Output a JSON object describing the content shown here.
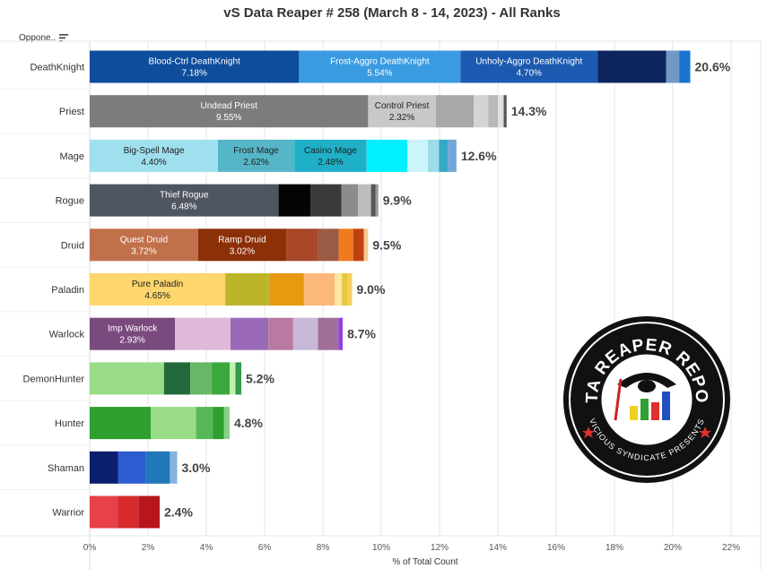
{
  "title": "vS Data Reaper # 258 (March 8 - 14, 2023) - All Ranks",
  "filter_label": "Oppone..",
  "logo_text": {
    "top": "DATA REAPER REPORT",
    "bottom": "VICIOUS SYNDICATE PRESENTS"
  },
  "chart_data": {
    "type": "bar",
    "orientation": "horizontal",
    "stacked": true,
    "xlabel": "% of Total Count",
    "xlim": [
      0,
      23
    ],
    "xticks": [
      "0%",
      "2%",
      "4%",
      "6%",
      "8%",
      "10%",
      "12%",
      "14%",
      "16%",
      "18%",
      "20%",
      "22%"
    ],
    "grid": true,
    "categories": [
      "DeathKnight",
      "Priest",
      "Mage",
      "Rogue",
      "Druid",
      "Paladin",
      "Warlock",
      "DemonHunter",
      "Hunter",
      "Shaman",
      "Warrior"
    ],
    "totals": [
      "20.6%",
      "14.3%",
      "12.6%",
      "9.9%",
      "9.5%",
      "9.0%",
      "8.7%",
      "5.2%",
      "4.8%",
      "3.0%",
      "2.4%"
    ],
    "bars": [
      {
        "class": "DeathKnight",
        "segments": [
          {
            "label": "Blood-Ctrl DeathKnight",
            "value": 7.18,
            "display": "7.18%",
            "color": "#0e4c9c",
            "text_color": "#ffffff"
          },
          {
            "label": "Frost-Aggro DeathKnight",
            "value": 5.54,
            "display": "5.54%",
            "color": "#3a9be0",
            "text_color": "#ffffff"
          },
          {
            "label": "Unholy-Aggro DeathKnight",
            "value": 4.7,
            "display": "4.70%",
            "color": "#1b5ab0",
            "text_color": "#ffffff"
          },
          {
            "value": 2.35,
            "color": "#0d245e"
          },
          {
            "value": 0.45,
            "color": "#6f9ac8"
          },
          {
            "value": 0.38,
            "color": "#1a73d0"
          }
        ]
      },
      {
        "class": "Priest",
        "segments": [
          {
            "label": "Undead Priest",
            "value": 9.55,
            "display": "9.55%",
            "color": "#7c7c7c",
            "text_color": "#ffffff"
          },
          {
            "label": "Control Priest",
            "value": 2.32,
            "display": "2.32%",
            "color": "#c8c8c8",
            "text_color": "#222222"
          },
          {
            "value": 1.3,
            "color": "#a8a8a8"
          },
          {
            "value": 0.5,
            "color": "#d4d4d4"
          },
          {
            "value": 0.33,
            "color": "#b8b8b8"
          },
          {
            "value": 0.2,
            "color": "#e0e0e0"
          },
          {
            "value": 0.1,
            "color": "#555555"
          }
        ]
      },
      {
        "class": "Mage",
        "segments": [
          {
            "label": "Big-Spell Mage",
            "value": 4.4,
            "display": "4.40%",
            "color": "#9fe0ee",
            "text_color": "#222222"
          },
          {
            "label": "Frost Mage",
            "value": 2.62,
            "display": "2.62%",
            "color": "#55b6c8",
            "text_color": "#222222"
          },
          {
            "label": "Casino Mage",
            "value": 2.48,
            "display": "2.48%",
            "color": "#1fb0c8",
            "text_color": "#222222"
          },
          {
            "value": 1.4,
            "color": "#00f0ff"
          },
          {
            "value": 0.7,
            "color": "#c9f5fb"
          },
          {
            "value": 0.38,
            "color": "#9cdce8"
          },
          {
            "value": 0.3,
            "color": "#36a8c4"
          },
          {
            "value": 0.3,
            "color": "#72a8d8"
          }
        ]
      },
      {
        "class": "Rogue",
        "segments": [
          {
            "label": "Thief Rogue",
            "value": 6.48,
            "display": "6.48%",
            "color": "#4f5662",
            "text_color": "#ffffff"
          },
          {
            "value": 1.1,
            "color": "#050505"
          },
          {
            "value": 1.05,
            "color": "#3a3a3a"
          },
          {
            "value": 0.57,
            "color": "#8c8c8c"
          },
          {
            "value": 0.45,
            "color": "#bdbdbd"
          },
          {
            "value": 0.15,
            "color": "#555555"
          },
          {
            "value": 0.1,
            "color": "#999999"
          }
        ]
      },
      {
        "class": "Druid",
        "segments": [
          {
            "label": "Quest Druid",
            "value": 3.72,
            "display": "3.72%",
            "color": "#c0704a",
            "text_color": "#ffffff"
          },
          {
            "label": "Ramp Druid",
            "value": 3.02,
            "display": "3.02%",
            "color": "#8c3008",
            "text_color": "#ffffff"
          },
          {
            "value": 1.1,
            "color": "#a84828"
          },
          {
            "value": 0.7,
            "color": "#9a5a44"
          },
          {
            "value": 0.5,
            "color": "#f07a20"
          },
          {
            "value": 0.36,
            "color": "#c04010"
          },
          {
            "value": 0.15,
            "color": "#f8c890"
          }
        ]
      },
      {
        "class": "Paladin",
        "segments": [
          {
            "label": "Pure Paladin",
            "value": 4.65,
            "display": "4.65%",
            "color": "#fdd66c",
            "text_color": "#222222"
          },
          {
            "value": 1.5,
            "color": "#bcb52a"
          },
          {
            "value": 1.2,
            "color": "#e69a10"
          },
          {
            "value": 1.05,
            "color": "#fbb87a"
          },
          {
            "value": 0.25,
            "color": "#fde6a0"
          },
          {
            "value": 0.2,
            "color": "#e8c840"
          },
          {
            "value": 0.15,
            "color": "#f6d05a"
          }
        ]
      },
      {
        "class": "Warlock",
        "segments": [
          {
            "label": "Imp Warlock",
            "value": 2.93,
            "display": "2.93%",
            "color": "#7a4a7e",
            "text_color": "#ffffff"
          },
          {
            "value": 1.9,
            "color": "#e0b8d8"
          },
          {
            "value": 1.3,
            "color": "#9a6ab8"
          },
          {
            "value": 0.85,
            "color": "#b87aa0"
          },
          {
            "value": 0.85,
            "color": "#c8b8d8"
          },
          {
            "value": 0.7,
            "color": "#a07098"
          },
          {
            "value": 0.15,
            "color": "#9040e0"
          }
        ]
      },
      {
        "class": "DemonHunter",
        "segments": [
          {
            "value": 2.55,
            "color": "#98dc88"
          },
          {
            "value": 0.9,
            "color": "#226a3c"
          },
          {
            "value": 0.75,
            "color": "#66b866"
          },
          {
            "value": 0.6,
            "color": "#3ba83b"
          },
          {
            "value": 0.2,
            "color": "#bff0b0"
          },
          {
            "value": 0.2,
            "color": "#2f9a4a"
          }
        ]
      },
      {
        "class": "Hunter",
        "segments": [
          {
            "value": 2.1,
            "color": "#2fa02f"
          },
          {
            "value": 1.55,
            "color": "#98dc88"
          },
          {
            "value": 0.57,
            "color": "#58b858"
          },
          {
            "value": 0.38,
            "color": "#2fa02f"
          },
          {
            "value": 0.2,
            "color": "#88d088"
          }
        ]
      },
      {
        "class": "Shaman",
        "segments": [
          {
            "value": 0.97,
            "color": "#0b1f6e"
          },
          {
            "value": 0.95,
            "color": "#2f5bd0"
          },
          {
            "value": 0.83,
            "color": "#2078b8"
          },
          {
            "value": 0.25,
            "color": "#86b2dc"
          }
        ]
      },
      {
        "class": "Warrior",
        "segments": [
          {
            "value": 0.97,
            "color": "#e8414a"
          },
          {
            "value": 0.7,
            "color": "#d62a2f"
          },
          {
            "value": 0.73,
            "color": "#b8161e"
          }
        ]
      }
    ]
  }
}
